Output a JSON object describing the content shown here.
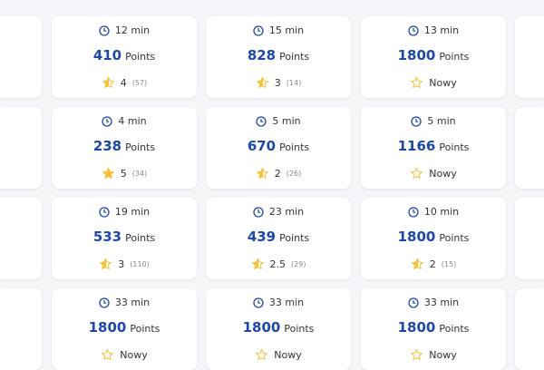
{
  "colors": {
    "accent": "#1d48a8",
    "star": "#f5c33b",
    "background": "#f5f6f9"
  },
  "points_label": "Points",
  "cards": [
    [
      {
        "time": "12 min",
        "points": "410",
        "rating": "4",
        "count": "(57)",
        "star": "half"
      },
      {
        "time": "15 min",
        "points": "828",
        "rating": "3",
        "count": "(14)",
        "star": "half"
      },
      {
        "time": "13 min",
        "points": "1800",
        "rating": "Nowy",
        "count": "",
        "star": "empty"
      }
    ],
    [
      {
        "time": "4 min",
        "points": "238",
        "rating": "5",
        "count": "(34)",
        "star": "full"
      },
      {
        "time": "5 min",
        "points": "670",
        "rating": "2",
        "count": "(26)",
        "star": "half"
      },
      {
        "time": "5 min",
        "points": "1166",
        "rating": "Nowy",
        "count": "",
        "star": "empty"
      }
    ],
    [
      {
        "time": "19 min",
        "points": "533",
        "rating": "3",
        "count": "(110)",
        "star": "half"
      },
      {
        "time": "23 min",
        "points": "439",
        "rating": "2.5",
        "count": "(29)",
        "star": "half"
      },
      {
        "time": "10 min",
        "points": "1800",
        "rating": "2",
        "count": "(15)",
        "star": "half"
      }
    ],
    [
      {
        "time": "33 min",
        "points": "1800",
        "rating": "Nowy",
        "count": "",
        "star": "empty"
      },
      {
        "time": "33 min",
        "points": "1800",
        "rating": "Nowy",
        "count": "",
        "star": "empty"
      },
      {
        "time": "33 min",
        "points": "1800",
        "rating": "Nowy",
        "count": "",
        "star": "empty"
      }
    ]
  ]
}
